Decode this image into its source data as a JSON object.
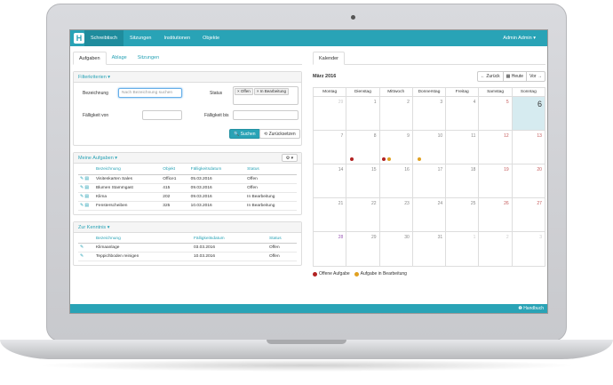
{
  "nav": {
    "logo": "H",
    "items": [
      {
        "label": "Schreibtisch"
      },
      {
        "label": "Sitzungen"
      },
      {
        "label": "Institutionen"
      },
      {
        "label": "Objekte"
      }
    ],
    "user": "Admin Admin ▾"
  },
  "left_tabs": [
    {
      "label": "Aufgaben"
    },
    {
      "label": "Ablage"
    },
    {
      "label": "Sitzungen"
    }
  ],
  "filter": {
    "title": "Filterkriterien ▾",
    "bezeichnung_label": "Bezeichnung",
    "bezeichnung_placeholder": "Nach Bezeichnung suchen",
    "status_label": "Status",
    "status_tags": [
      "× Offen",
      "× In Bearbeitung"
    ],
    "faellig_von_label": "Fälligkeit von",
    "faellig_bis_label": "Fälligkeit bis",
    "search_button": "Suchen",
    "reset_button": "Zurücksetzen"
  },
  "meine_aufgaben": {
    "title": "Meine Aufgaben ▾",
    "columns": [
      "Bezeichnung",
      "Objekt",
      "Fälligkeitsdatum",
      "Status"
    ],
    "rows": [
      [
        "Visitenkarten Sales",
        "Office1",
        "05.03.2016",
        "Offen"
      ],
      [
        "Blumen Stammgast",
        "415",
        "09.03.2016",
        "Offen"
      ],
      [
        "Klima",
        "202",
        "09.03.2016",
        "In Bearbeitung"
      ],
      [
        "Fensterscheiben",
        "325",
        "10.03.2016",
        "In Bearbeitung"
      ]
    ]
  },
  "zur_kenntnis": {
    "title": "Zur Kenntnis ▾",
    "columns": [
      "Bezeichnung",
      "Fälligkeitsdatum",
      "Status"
    ],
    "rows": [
      [
        "Klimaanlage",
        "03.03.2016",
        "Offen"
      ],
      [
        "Teppichboden reinigen",
        "10.03.2016",
        "Offen"
      ]
    ]
  },
  "calendar": {
    "tab": "Kalender",
    "month": "März 2016",
    "prev": "← Zurück",
    "today": "▦ Heute",
    "next": "Vor →",
    "weekdays": [
      "Montag",
      "Dienstag",
      "Mittwoch",
      "Donnerstag",
      "Freitag",
      "Samstag",
      "Sonntag"
    ],
    "weeks": [
      [
        "29",
        "1",
        "2",
        "3",
        "4",
        "5",
        "6"
      ],
      [
        "7",
        "8",
        "9",
        "10",
        "11",
        "12",
        "13"
      ],
      [
        "14",
        "15",
        "16",
        "17",
        "18",
        "19",
        "20"
      ],
      [
        "21",
        "22",
        "23",
        "24",
        "25",
        "26",
        "27"
      ],
      [
        "28",
        "29",
        "30",
        "31",
        "1",
        "2",
        "3"
      ]
    ],
    "legend": [
      "Offene Aufgabe",
      "Aufgabe in Bearbeitung"
    ],
    "colors": {
      "open": "#b22222",
      "in_progress": "#e0a020",
      "accent": "#29a3b6"
    }
  },
  "footer": {
    "help": "❶ Handbuch"
  }
}
